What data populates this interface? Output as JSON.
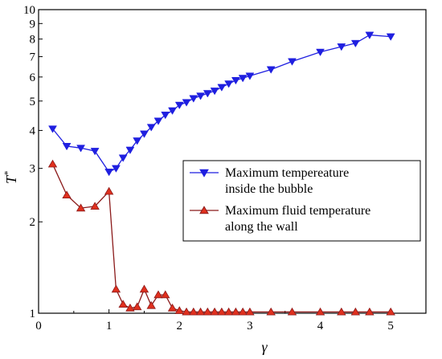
{
  "chart_data": {
    "type": "line",
    "xlabel": "γ",
    "ylabel_base": "T",
    "ylabel_sup": "*",
    "xlim": [
      0,
      5.5
    ],
    "ylim": [
      1,
      10
    ],
    "y_scale": "log",
    "x_ticks": [
      "0",
      "1",
      "2",
      "3",
      "4",
      "5"
    ],
    "y_ticks": [
      "1",
      "2",
      "3",
      "4",
      "5",
      "6",
      "7",
      "8",
      "9",
      "10"
    ],
    "legend_position": "center-right",
    "series": [
      {
        "name_lines": [
          "Maximum tempereature",
          "inside the bubble"
        ],
        "color": "#1f1fe0",
        "marker": "triangle-down",
        "x": [
          0.2,
          0.4,
          0.6,
          0.8,
          1.0,
          1.1,
          1.2,
          1.3,
          1.4,
          1.5,
          1.6,
          1.7,
          1.8,
          1.9,
          2.0,
          2.1,
          2.2,
          2.3,
          2.4,
          2.5,
          2.6,
          2.7,
          2.8,
          2.9,
          3.0,
          3.3,
          3.6,
          4.0,
          4.3,
          4.5,
          4.7,
          5.0
        ],
        "y": [
          4.05,
          3.55,
          3.5,
          3.42,
          2.92,
          3.0,
          3.25,
          3.45,
          3.7,
          3.9,
          4.1,
          4.3,
          4.5,
          4.65,
          4.85,
          4.95,
          5.1,
          5.2,
          5.3,
          5.4,
          5.55,
          5.7,
          5.85,
          5.95,
          6.05,
          6.35,
          6.75,
          7.25,
          7.55,
          7.75,
          8.25,
          8.15
        ]
      },
      {
        "name_lines": [
          "Maximum fluid temperature",
          "along the wall"
        ],
        "color": "#8b1a1a",
        "marker_fill": "#e0301e",
        "marker": "triangle-up",
        "x": [
          0.2,
          0.4,
          0.6,
          0.8,
          1.0,
          1.1,
          1.2,
          1.3,
          1.4,
          1.5,
          1.6,
          1.7,
          1.8,
          1.9,
          2.0,
          2.1,
          2.2,
          2.3,
          2.4,
          2.5,
          2.6,
          2.7,
          2.8,
          2.9,
          3.0,
          3.3,
          3.6,
          4.0,
          4.3,
          4.5,
          4.7,
          5.0
        ],
        "y": [
          3.1,
          2.45,
          2.22,
          2.25,
          2.52,
          1.2,
          1.07,
          1.04,
          1.05,
          1.2,
          1.06,
          1.15,
          1.15,
          1.04,
          1.02,
          1.01,
          1.01,
          1.01,
          1.01,
          1.01,
          1.01,
          1.01,
          1.01,
          1.01,
          1.01,
          1.01,
          1.01,
          1.01,
          1.01,
          1.01,
          1.01,
          1.01
        ]
      }
    ]
  }
}
